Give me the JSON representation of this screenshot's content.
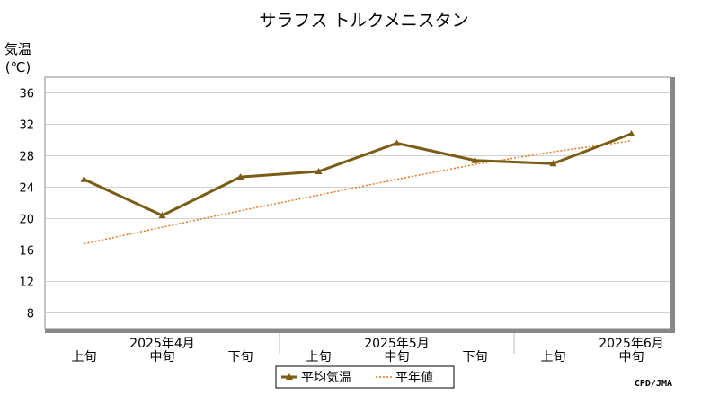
{
  "chart_data": {
    "type": "line",
    "title": "サラフス トルクメニスタン",
    "ylabel_main": "気温",
    "ylabel_unit": "(℃)",
    "ylim": [
      6,
      38
    ],
    "yticks": [
      8,
      12,
      16,
      20,
      24,
      28,
      32,
      36
    ],
    "categories": [
      "上旬",
      "中旬",
      "下旬",
      "上旬",
      "中旬",
      "下旬",
      "上旬",
      "中旬"
    ],
    "months": [
      {
        "label": "2025年4月",
        "center_index": 1
      },
      {
        "label": "2025年5月",
        "center_index": 4
      },
      {
        "label": "2025年6月",
        "center_index": 7
      }
    ],
    "series": [
      {
        "name": "平均気温",
        "style": "solid-triangle",
        "color": "#7a5c14",
        "values": [
          25.0,
          20.4,
          25.3,
          26.0,
          29.6,
          27.4,
          27.0,
          30.8
        ]
      },
      {
        "name": "平年値",
        "style": "dotted",
        "color": "#e8761e",
        "values": [
          16.8,
          18.9,
          21.0,
          23.0,
          25.0,
          26.9,
          28.5,
          29.9
        ]
      }
    ],
    "legend": {
      "position": "bottom"
    },
    "credit": "CPD/JMA",
    "grid": true
  }
}
